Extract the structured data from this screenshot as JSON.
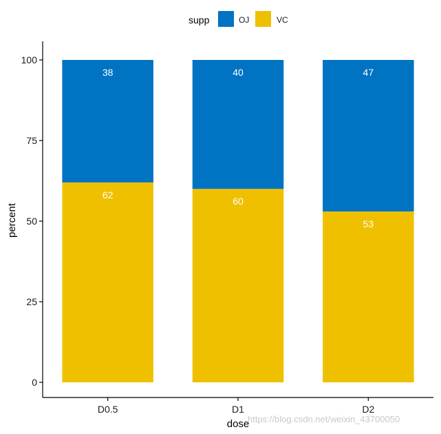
{
  "chart_data": {
    "type": "bar",
    "stacked": true,
    "categories": [
      "D0.5",
      "D1",
      "D2"
    ],
    "series": [
      {
        "name": "VC",
        "values": [
          62,
          60,
          53
        ],
        "labels": [
          "62",
          "60",
          "53"
        ],
        "color": "#EFC000"
      },
      {
        "name": "OJ",
        "values": [
          38,
          40,
          47
        ],
        "labels": [
          "38",
          "40",
          "47"
        ],
        "color": "#0073C2"
      }
    ],
    "xlabel": "dose",
    "ylabel": "percent",
    "ylim": [
      0,
      100
    ],
    "yticks": [
      0,
      25,
      50,
      75,
      100
    ],
    "grid": false,
    "legend": {
      "title": "supp",
      "position": "top",
      "entries": [
        "OJ",
        "VC"
      ]
    }
  },
  "watermark": "https://blog.csdn.net/weixin_43700050"
}
